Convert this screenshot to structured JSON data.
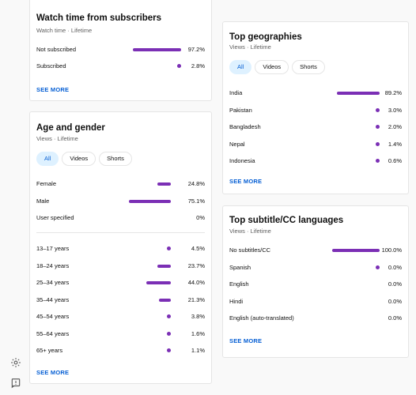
{
  "rail": {
    "icons": [
      "gear-icon",
      "feedback-icon"
    ]
  },
  "watch_time": {
    "title": "Watch time from subscribers",
    "subtitle": "Watch time · Lifetime",
    "rows": [
      {
        "label": "Not subscribed",
        "value": "97.2%",
        "fraction": 0.972
      },
      {
        "label": "Subscribed",
        "value": "2.8%",
        "fraction": 0.028
      }
    ],
    "see_more": "SEE MORE"
  },
  "age_gender": {
    "title": "Age and gender",
    "subtitle": "Views · Lifetime",
    "chips": [
      {
        "label": "All",
        "active": true
      },
      {
        "label": "Videos",
        "active": false
      },
      {
        "label": "Shorts",
        "active": false
      }
    ],
    "gender_rows": [
      {
        "label": "Female",
        "value": "24.8%",
        "fraction": 0.248
      },
      {
        "label": "Male",
        "value": "75.1%",
        "fraction": 0.751
      },
      {
        "label": "User specified",
        "value": "0%",
        "fraction": 0
      }
    ],
    "age_rows": [
      {
        "label": "13–17 years",
        "value": "4.5%",
        "fraction": 0.045
      },
      {
        "label": "18–24 years",
        "value": "23.7%",
        "fraction": 0.237
      },
      {
        "label": "25–34 years",
        "value": "44.0%",
        "fraction": 0.44
      },
      {
        "label": "35–44 years",
        "value": "21.3%",
        "fraction": 0.213
      },
      {
        "label": "45–54 years",
        "value": "3.8%",
        "fraction": 0.038
      },
      {
        "label": "55–64 years",
        "value": "1.6%",
        "fraction": 0.016
      },
      {
        "label": "65+ years",
        "value": "1.1%",
        "fraction": 0.011
      }
    ],
    "see_more": "SEE MORE"
  },
  "geographies": {
    "title": "Top geographies",
    "subtitle": "Views · Lifetime",
    "chips": [
      {
        "label": "All",
        "active": true
      },
      {
        "label": "Videos",
        "active": false
      },
      {
        "label": "Shorts",
        "active": false
      }
    ],
    "rows": [
      {
        "label": "India",
        "value": "89.2%",
        "fraction": 0.892
      },
      {
        "label": "Pakistan",
        "value": "3.0%",
        "fraction": 0.03
      },
      {
        "label": "Bangladesh",
        "value": "2.0%",
        "fraction": 0.02
      },
      {
        "label": "Nepal",
        "value": "1.4%",
        "fraction": 0.014
      },
      {
        "label": "Indonesia",
        "value": "0.6%",
        "fraction": 0.006
      }
    ],
    "see_more": "SEE MORE"
  },
  "subtitles": {
    "title": "Top subtitle/CC languages",
    "subtitle": "Views · Lifetime",
    "rows": [
      {
        "label": "No subtitles/CC",
        "value": "100.0%",
        "fraction": 1.0
      },
      {
        "label": "Spanish",
        "value": "0.0%",
        "fraction": 0.0004
      },
      {
        "label": "English",
        "value": "0.0%",
        "fraction": 0
      },
      {
        "label": "Hindi",
        "value": "0.0%",
        "fraction": 0
      },
      {
        "label": "English (auto-translated)",
        "value": "0.0%",
        "fraction": 0
      }
    ],
    "see_more": "SEE MORE"
  },
  "colors": {
    "bar": "#7b2fb5",
    "link": "#065fd4",
    "chip_active_bg": "#def1ff"
  }
}
